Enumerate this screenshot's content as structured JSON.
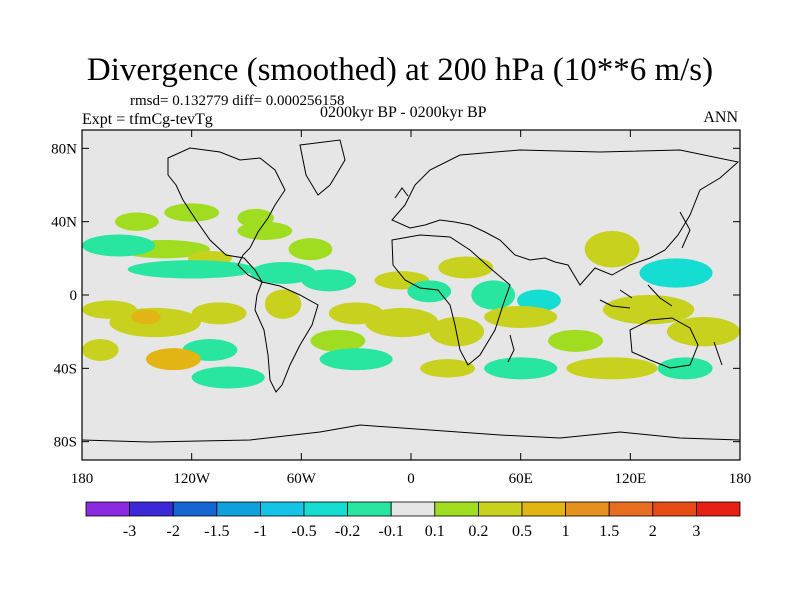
{
  "header": {
    "title": "Divergence (smoothed) at 200 hPa (10**6 m/s)",
    "stats": "rmsd= 0.132779 diff= 0.000256158",
    "experiment": "Expt = tfmCg-tevTg",
    "period": "0200kyr BP - 0200kyr BP",
    "season": "ANN"
  },
  "chart_data": {
    "type": "heatmap",
    "title": "Divergence (smoothed) at 200 hPa (10**6 m/s)",
    "xlim": [
      -180,
      180
    ],
    "ylim": [
      -90,
      90
    ],
    "x_ticks": [
      {
        "value": -180,
        "label": "180"
      },
      {
        "value": -120,
        "label": "120W"
      },
      {
        "value": -60,
        "label": "60W"
      },
      {
        "value": 0,
        "label": "0"
      },
      {
        "value": 60,
        "label": "60E"
      },
      {
        "value": 120,
        "label": "120E"
      },
      {
        "value": 180,
        "label": "180"
      }
    ],
    "y_ticks": [
      {
        "value": 80,
        "label": "80N"
      },
      {
        "value": 40,
        "label": "40N"
      },
      {
        "value": 0,
        "label": "0"
      },
      {
        "value": -40,
        "label": "40S"
      },
      {
        "value": -80,
        "label": "80S"
      }
    ],
    "colorbar": {
      "colors": [
        "#8a2be2",
        "#3c28d8",
        "#1464d2",
        "#10a0dc",
        "#14c3e6",
        "#16ddd2",
        "#28e6a0",
        "#e6e6e6",
        "#a0dc20",
        "#c8d11e",
        "#e2b414",
        "#e6901e",
        "#e66e1e",
        "#e64b14",
        "#e61e14"
      ],
      "labels": [
        "-3",
        "-2",
        "-1.5",
        "-1",
        "-0.5",
        "-0.2",
        "-0.1",
        "0.1",
        "0.2",
        "0.5",
        "1",
        "1.5",
        "2",
        "3"
      ]
    },
    "regions": [
      {
        "lon": -135,
        "lat": 25,
        "rx": 25,
        "ry": 5,
        "value": 0.15
      },
      {
        "lon": -110,
        "lat": 20,
        "rx": 12,
        "ry": 4,
        "value": 0.3
      },
      {
        "lon": -80,
        "lat": 35,
        "rx": 15,
        "ry": 5,
        "value": 0.15
      },
      {
        "lon": -55,
        "lat": 25,
        "rx": 12,
        "ry": 6,
        "value": 0.15
      },
      {
        "lon": -85,
        "lat": 42,
        "rx": 10,
        "ry": 5,
        "value": 0.15
      },
      {
        "lon": -150,
        "lat": 40,
        "rx": 12,
        "ry": 5,
        "value": 0.15
      },
      {
        "lon": -160,
        "lat": 27,
        "rx": 20,
        "ry": 6,
        "value": -0.15
      },
      {
        "lon": -120,
        "lat": 14,
        "rx": 35,
        "ry": 5,
        "value": -0.15
      },
      {
        "lon": -70,
        "lat": 12,
        "rx": 18,
        "ry": 6,
        "value": -0.15
      },
      {
        "lon": -45,
        "lat": 8,
        "rx": 15,
        "ry": 6,
        "value": -0.15
      },
      {
        "lon": -5,
        "lat": 8,
        "rx": 15,
        "ry": 5,
        "value": 0.2
      },
      {
        "lon": 10,
        "lat": 2,
        "rx": 12,
        "ry": 6,
        "value": -0.15
      },
      {
        "lon": 30,
        "lat": 15,
        "rx": 15,
        "ry": 6,
        "value": 0.2
      },
      {
        "lon": 45,
        "lat": 0,
        "rx": 12,
        "ry": 8,
        "value": -0.15
      },
      {
        "lon": 70,
        "lat": -3,
        "rx": 12,
        "ry": 6,
        "value": -0.3
      },
      {
        "lon": 110,
        "lat": 25,
        "rx": 15,
        "ry": 10,
        "value": 0.3
      },
      {
        "lon": 145,
        "lat": 12,
        "rx": 20,
        "ry": 8,
        "value": -0.3
      },
      {
        "lon": 130,
        "lat": -8,
        "rx": 25,
        "ry": 8,
        "value": 0.4
      },
      {
        "lon": 160,
        "lat": -20,
        "rx": 20,
        "ry": 8,
        "value": 0.25
      },
      {
        "lon": -165,
        "lat": -8,
        "rx": 15,
        "ry": 5,
        "value": 0.2
      },
      {
        "lon": -140,
        "lat": -15,
        "rx": 25,
        "ry": 8,
        "value": 0.4
      },
      {
        "lon": -145,
        "lat": -12,
        "rx": 8,
        "ry": 4,
        "value": 0.8
      },
      {
        "lon": -105,
        "lat": -10,
        "rx": 15,
        "ry": 6,
        "value": 0.3
      },
      {
        "lon": -110,
        "lat": -30,
        "rx": 15,
        "ry": 6,
        "value": -0.2
      },
      {
        "lon": -70,
        "lat": -5,
        "rx": 10,
        "ry": 8,
        "value": 0.4
      },
      {
        "lon": -40,
        "lat": -25,
        "rx": 15,
        "ry": 6,
        "value": 0.15
      },
      {
        "lon": -30,
        "lat": -10,
        "rx": 15,
        "ry": 6,
        "value": 0.3
      },
      {
        "lon": -5,
        "lat": -15,
        "rx": 20,
        "ry": 8,
        "value": 0.3
      },
      {
        "lon": 25,
        "lat": -20,
        "rx": 15,
        "ry": 8,
        "value": 0.3
      },
      {
        "lon": 60,
        "lat": -12,
        "rx": 20,
        "ry": 6,
        "value": 0.3
      },
      {
        "lon": 90,
        "lat": -25,
        "rx": 15,
        "ry": 6,
        "value": 0.15
      },
      {
        "lon": -170,
        "lat": -30,
        "rx": 10,
        "ry": 6,
        "value": 0.3
      },
      {
        "lon": -130,
        "lat": -35,
        "rx": 15,
        "ry": 6,
        "value": 0.5
      },
      {
        "lon": -100,
        "lat": -45,
        "rx": 20,
        "ry": 6,
        "value": -0.2
      },
      {
        "lon": -30,
        "lat": -35,
        "rx": 20,
        "ry": 6,
        "value": -0.2
      },
      {
        "lon": 20,
        "lat": -40,
        "rx": 15,
        "ry": 5,
        "value": 0.2
      },
      {
        "lon": 60,
        "lat": -40,
        "rx": 20,
        "ry": 6,
        "value": -0.2
      },
      {
        "lon": 110,
        "lat": -40,
        "rx": 25,
        "ry": 6,
        "value": 0.2
      },
      {
        "lon": 150,
        "lat": -40,
        "rx": 15,
        "ry": 6,
        "value": -0.2
      },
      {
        "lon": -120,
        "lat": 45,
        "rx": 15,
        "ry": 5,
        "value": 0.15
      }
    ]
  }
}
